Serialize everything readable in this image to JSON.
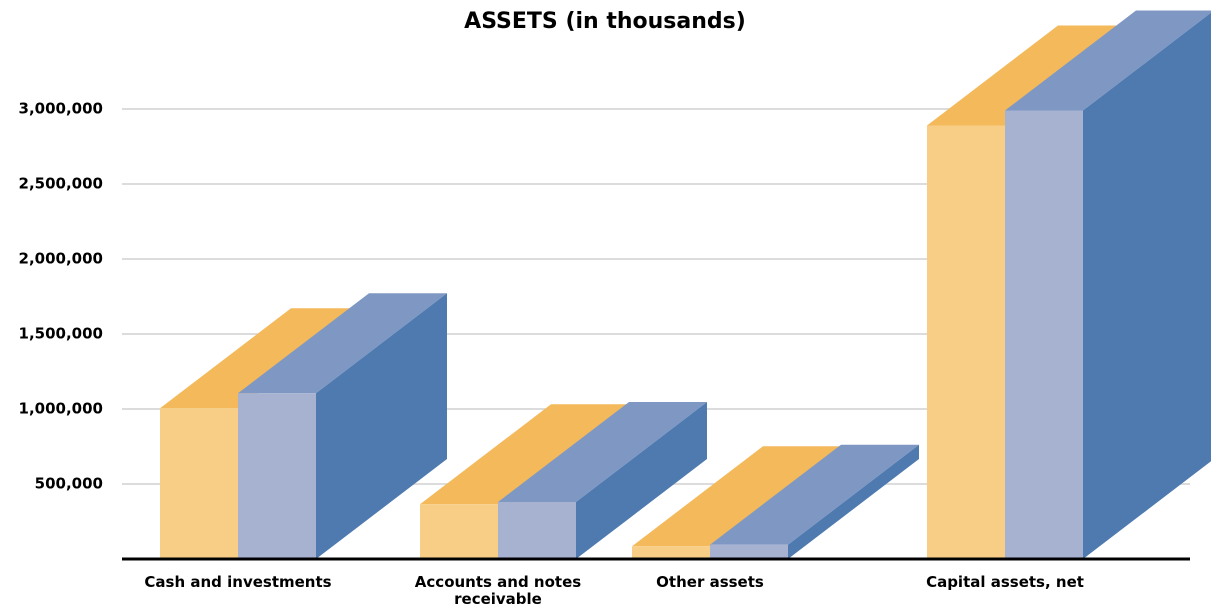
{
  "chart_data": {
    "type": "bar3d",
    "title": "ASSETS (in thousands)",
    "categories": [
      "Cash and investments",
      "Accounts and notes receivable",
      "Other assets",
      "Capital assets, net"
    ],
    "series": [
      {
        "color": "#f8ce86",
        "values": [
          1005000,
          365000,
          85000,
          2890000
        ]
      },
      {
        "color": "#a6b2d0",
        "values": [
          1105000,
          380000,
          95000,
          2990000
        ]
      }
    ],
    "ylim": [
      0,
      3500000
    ],
    "yticks": [
      {
        "value": 500000,
        "label": "500,000"
      },
      {
        "value": 1000000,
        "label": "1,000,000"
      },
      {
        "value": 1500000,
        "label": "1,500,000"
      },
      {
        "value": 2000000,
        "label": "2,000,000"
      },
      {
        "value": 2500000,
        "label": "2,500,000"
      },
      {
        "value": 3000000,
        "label": "3,000,000"
      }
    ],
    "grid": true
  }
}
